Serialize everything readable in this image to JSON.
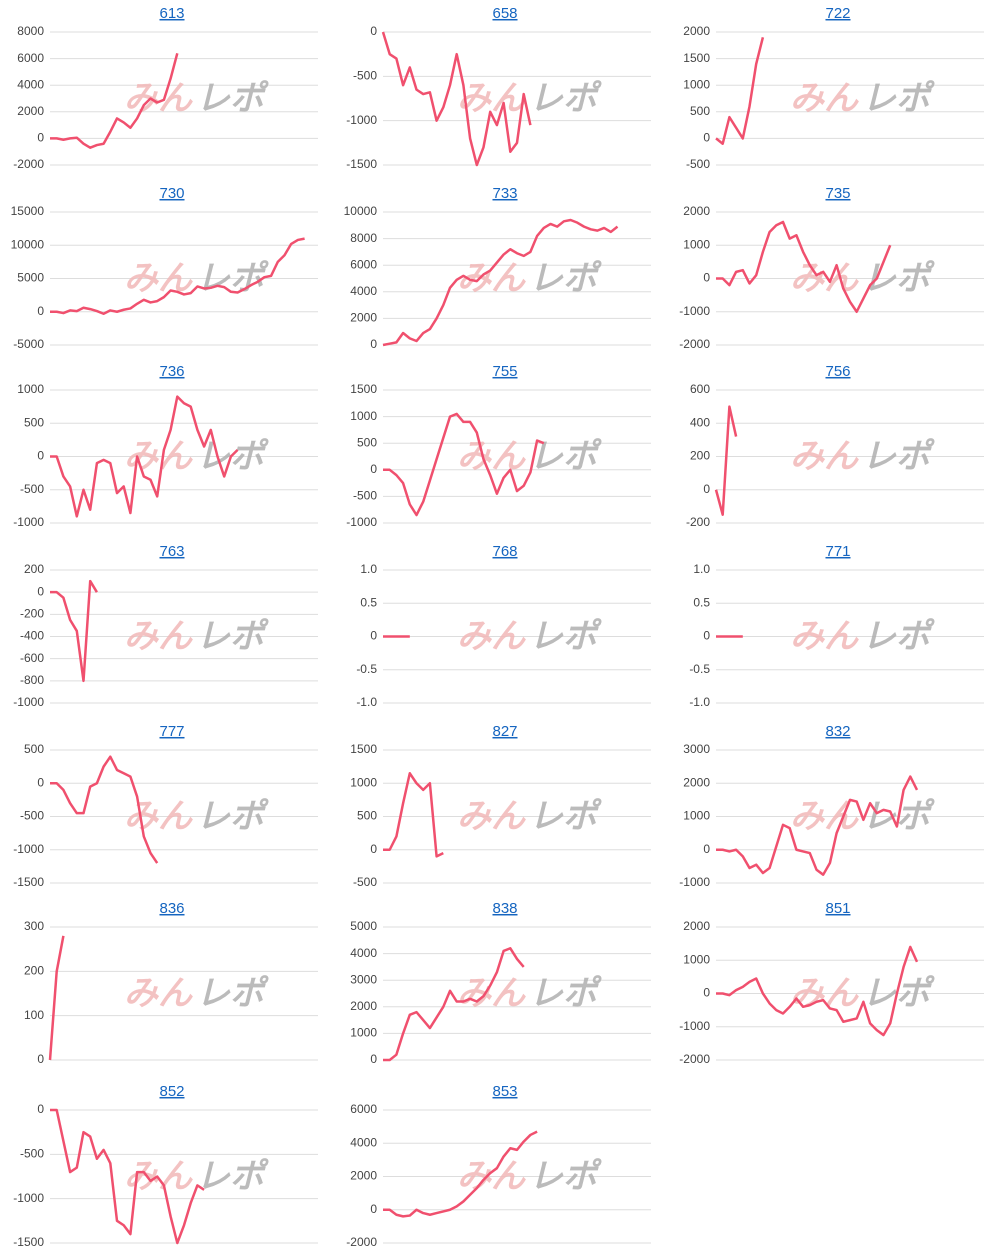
{
  "watermark": [
    "みん",
    "レポ"
  ],
  "chart_data": [
    {
      "type": "line",
      "title": "613",
      "color": "#f0506e",
      "xlim": [
        0,
        40
      ],
      "ylim": [
        -2000,
        8000
      ],
      "yticks": [
        -2000,
        0,
        2000,
        4000,
        6000,
        8000
      ],
      "values": [
        0,
        0,
        -100,
        0,
        50,
        -400,
        -700,
        -500,
        -400,
        500,
        1500,
        1200,
        800,
        1500,
        2500,
        3000,
        2700,
        2900,
        4500,
        6400
      ]
    },
    {
      "type": "line",
      "title": "658",
      "color": "#f0506e",
      "xlim": [
        0,
        40
      ],
      "ylim": [
        -1500,
        0
      ],
      "yticks": [
        -1500,
        -1000,
        -500,
        0
      ],
      "values": [
        0,
        -250,
        -300,
        -600,
        -400,
        -650,
        -700,
        -680,
        -1000,
        -850,
        -600,
        -250,
        -600,
        -1200,
        -1500,
        -1300,
        -900,
        -1050,
        -800,
        -1350,
        -1250,
        -700,
        -1050
      ]
    },
    {
      "type": "line",
      "title": "722",
      "color": "#f0506e",
      "xlim": [
        0,
        40
      ],
      "ylim": [
        -500,
        2000
      ],
      "yticks": [
        -500,
        0,
        500,
        1000,
        1500,
        2000
      ],
      "values": [
        0,
        -100,
        400,
        200,
        0,
        600,
        1400,
        1900
      ]
    },
    {
      "type": "line",
      "title": "730",
      "color": "#f0506e",
      "xlim": [
        0,
        40
      ],
      "ylim": [
        -5000,
        15000
      ],
      "yticks": [
        -5000,
        0,
        5000,
        10000,
        15000
      ],
      "values": [
        0,
        0,
        -200,
        200,
        100,
        600,
        400,
        100,
        -300,
        200,
        0,
        300,
        500,
        1200,
        1800,
        1400,
        1600,
        2200,
        3200,
        3000,
        2600,
        2800,
        3800,
        3500,
        3600,
        3900,
        3700,
        3000,
        2900,
        3400,
        4000,
        4500,
        5200,
        5400,
        7500,
        8500,
        10200,
        10800,
        11000
      ]
    },
    {
      "type": "line",
      "title": "733",
      "color": "#f0506e",
      "xlim": [
        0,
        40
      ],
      "ylim": [
        0,
        10000
      ],
      "yticks": [
        0,
        2000,
        4000,
        6000,
        8000,
        10000
      ],
      "values": [
        0,
        100,
        200,
        900,
        500,
        300,
        900,
        1200,
        2000,
        3000,
        4300,
        4900,
        5200,
        4900,
        4800,
        5300,
        5600,
        6200,
        6800,
        7200,
        6900,
        6700,
        7000,
        8200,
        8800,
        9100,
        8900,
        9300,
        9400,
        9200,
        8900,
        8700,
        8600,
        8800,
        8500,
        8900
      ]
    },
    {
      "type": "line",
      "title": "735",
      "color": "#f0506e",
      "xlim": [
        0,
        40
      ],
      "ylim": [
        -2000,
        2000
      ],
      "yticks": [
        -2000,
        -1000,
        0,
        1000,
        2000
      ],
      "values": [
        0,
        0,
        -200,
        200,
        250,
        -150,
        100,
        800,
        1400,
        1600,
        1700,
        1200,
        1300,
        800,
        400,
        100,
        200,
        -100,
        400,
        -300,
        -700,
        -1000,
        -600,
        -200,
        0,
        500,
        1000
      ]
    },
    {
      "type": "line",
      "title": "736",
      "color": "#f0506e",
      "xlim": [
        0,
        40
      ],
      "ylim": [
        -1000,
        1000
      ],
      "yticks": [
        -1000,
        -500,
        0,
        500,
        1000
      ],
      "values": [
        0,
        0,
        -300,
        -450,
        -900,
        -500,
        -800,
        -100,
        -50,
        -100,
        -550,
        -450,
        -850,
        0,
        -300,
        -350,
        -600,
        100,
        400,
        900,
        800,
        750,
        400,
        150,
        400,
        0,
        -300,
        0,
        100
      ]
    },
    {
      "type": "line",
      "title": "755",
      "color": "#f0506e",
      "xlim": [
        0,
        40
      ],
      "ylim": [
        -1000,
        1500
      ],
      "yticks": [
        -1000,
        -500,
        0,
        500,
        1000,
        1500
      ],
      "values": [
        0,
        0,
        -100,
        -250,
        -650,
        -850,
        -600,
        -200,
        200,
        600,
        1000,
        1050,
        900,
        900,
        700,
        200,
        -100,
        -450,
        -150,
        0,
        -400,
        -300,
        -50,
        550,
        500
      ]
    },
    {
      "type": "line",
      "title": "756",
      "color": "#f0506e",
      "xlim": [
        0,
        40
      ],
      "ylim": [
        -200,
        600
      ],
      "yticks": [
        -200,
        0,
        200,
        400,
        600
      ],
      "values": [
        0,
        -150,
        500,
        320
      ]
    },
    {
      "type": "line",
      "title": "763",
      "color": "#f0506e",
      "xlim": [
        0,
        40
      ],
      "ylim": [
        -1000,
        200
      ],
      "yticks": [
        -1000,
        -800,
        -600,
        -400,
        -200,
        0,
        200
      ],
      "values": [
        0,
        0,
        -50,
        -250,
        -350,
        -800,
        100,
        0
      ]
    },
    {
      "type": "line",
      "title": "768",
      "color": "#f0506e",
      "xlim": [
        0,
        40
      ],
      "ylim": [
        -1,
        1
      ],
      "yticks": [
        {
          "value": -1,
          "label": "-1.0"
        },
        {
          "value": -0.5,
          "label": "-0.5"
        },
        0,
        {
          "value": 0.5,
          "label": "0.5"
        },
        {
          "value": 1,
          "label": "1.0"
        }
      ],
      "values": [
        0,
        0,
        0,
        0,
        0
      ]
    },
    {
      "type": "line",
      "title": "771",
      "color": "#f0506e",
      "xlim": [
        0,
        40
      ],
      "ylim": [
        -1,
        1
      ],
      "yticks": [
        {
          "value": -1,
          "label": "-1.0"
        },
        {
          "value": -0.5,
          "label": "-0.5"
        },
        0,
        {
          "value": 0.5,
          "label": "0.5"
        },
        {
          "value": 1,
          "label": "1.0"
        }
      ],
      "values": [
        0,
        0,
        0,
        0,
        0
      ]
    },
    {
      "type": "line",
      "title": "777",
      "color": "#f0506e",
      "xlim": [
        0,
        40
      ],
      "ylim": [
        -1500,
        500
      ],
      "yticks": [
        -1500,
        -1000,
        -500,
        0,
        500
      ],
      "values": [
        0,
        0,
        -100,
        -300,
        -450,
        -450,
        -50,
        0,
        250,
        400,
        200,
        150,
        100,
        -200,
        -800,
        -1050,
        -1200
      ]
    },
    {
      "type": "line",
      "title": "827",
      "color": "#f0506e",
      "xlim": [
        0,
        40
      ],
      "ylim": [
        -500,
        1500
      ],
      "yticks": [
        -500,
        0,
        500,
        1000,
        1500
      ],
      "values": [
        0,
        0,
        200,
        700,
        1150,
        1000,
        900,
        1000,
        -100,
        -50
      ]
    },
    {
      "type": "line",
      "title": "832",
      "color": "#f0506e",
      "xlim": [
        0,
        40
      ],
      "ylim": [
        -1000,
        3000
      ],
      "yticks": [
        -1000,
        0,
        1000,
        2000,
        3000
      ],
      "values": [
        0,
        0,
        -50,
        0,
        -200,
        -550,
        -450,
        -700,
        -550,
        100,
        750,
        650,
        0,
        -50,
        -100,
        -600,
        -750,
        -400,
        500,
        1000,
        1500,
        1450,
        900,
        1400,
        1100,
        1200,
        1150,
        700,
        1800,
        2200,
        1800
      ]
    },
    {
      "type": "line",
      "title": "836",
      "color": "#f0506e",
      "xlim": [
        0,
        40
      ],
      "ylim": [
        0,
        300
      ],
      "yticks": [
        0,
        100,
        200,
        300
      ],
      "values": [
        0,
        200,
        280
      ]
    },
    {
      "type": "line",
      "title": "838",
      "color": "#f0506e",
      "xlim": [
        0,
        40
      ],
      "ylim": [
        0,
        5000
      ],
      "yticks": [
        0,
        1000,
        2000,
        3000,
        4000,
        5000
      ],
      "values": [
        0,
        0,
        200,
        1000,
        1700,
        1800,
        1500,
        1200,
        1600,
        2000,
        2600,
        2200,
        2200,
        2300,
        2200,
        2400,
        2800,
        3300,
        4100,
        4200,
        3800,
        3500
      ]
    },
    {
      "type": "line",
      "title": "851",
      "color": "#f0506e",
      "xlim": [
        0,
        40
      ],
      "ylim": [
        -2000,
        2000
      ],
      "yticks": [
        -2000,
        -1000,
        0,
        1000,
        2000
      ],
      "values": [
        0,
        0,
        -50,
        100,
        200,
        350,
        450,
        0,
        -300,
        -500,
        -600,
        -400,
        -150,
        -400,
        -350,
        -250,
        -200,
        -450,
        -500,
        -850,
        -800,
        -750,
        -250,
        -900,
        -1100,
        -1250,
        -900,
        0,
        800,
        1400,
        950
      ]
    },
    {
      "type": "line",
      "title": "852",
      "color": "#f0506e",
      "xlim": [
        0,
        40
      ],
      "ylim": [
        -1500,
        0
      ],
      "yticks": [
        -1500,
        -1000,
        -500,
        0
      ],
      "values": [
        0,
        0,
        -350,
        -700,
        -650,
        -250,
        -300,
        -550,
        -450,
        -600,
        -1250,
        -1300,
        -1400,
        -700,
        -700,
        -800,
        -750,
        -850,
        -1200,
        -1500,
        -1300,
        -1050,
        -850,
        -900
      ]
    },
    {
      "type": "line",
      "title": "853",
      "color": "#f0506e",
      "xlim": [
        0,
        40
      ],
      "ylim": [
        -2000,
        6000
      ],
      "yticks": [
        -2000,
        0,
        2000,
        4000,
        6000
      ],
      "values": [
        0,
        0,
        -300,
        -400,
        -350,
        0,
        -200,
        -300,
        -200,
        -100,
        0,
        200,
        500,
        900,
        1300,
        1800,
        2200,
        2500,
        3200,
        3700,
        3600,
        4100,
        4500,
        4700
      ]
    }
  ]
}
